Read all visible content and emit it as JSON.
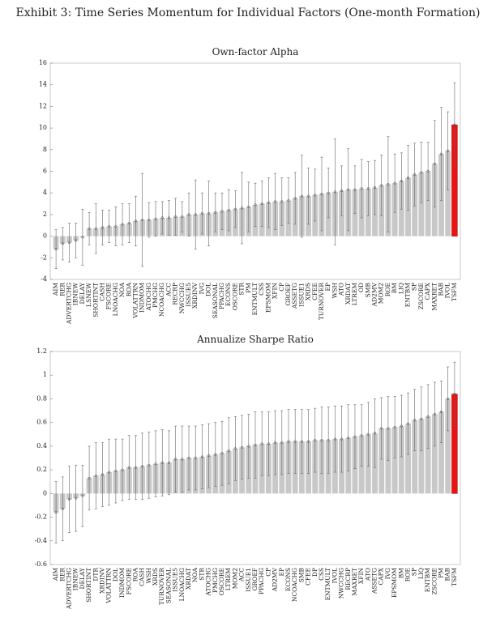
{
  "title": "Exhibit 3: Time Series Momentum for Individual Factors (One-month Formation)",
  "chart_data": [
    {
      "type": "bar",
      "title": "Own-factor Alpha",
      "categories": [
        "AIM",
        "RER",
        "ADVERTCHG",
        "IBNEW",
        "DELAY",
        "LSNEW",
        "SHORTINT",
        "CASH",
        "FSCORE",
        "LNOACHG",
        "NOA",
        "ROA",
        "VOLATTRN",
        "INDMOM",
        "ATOCHG",
        "PMCHG",
        "NCOACHG",
        "ACC",
        "RECRP",
        "NWCCHG",
        "ISSUE5",
        "XRDINV",
        "IVG",
        "DOL",
        "SEASONAL",
        "PPACHG",
        "ECONS",
        "OSCORE",
        "STR",
        "PM",
        "ENTMULT",
        "CSS",
        "EPSMOM",
        "XFIN",
        "CP",
        "GROEF",
        "ASSETG",
        "ISSUE1",
        "XRDS",
        "CFEE",
        "TURNOVER",
        "EP",
        "WSH",
        "ATO",
        "XRDAT",
        "LTREM",
        "OD",
        "SMB",
        "AD2MV",
        "MOM2",
        "ROE",
        "BM",
        "LIQ",
        "ENTBM",
        "SP",
        "ZSCORE",
        "CAPX",
        "MAXRET",
        "BAB",
        "IVOL",
        "TSFM"
      ],
      "values": [
        -1.2,
        -0.7,
        -0.6,
        -0.4,
        -0.1,
        0.7,
        0.7,
        0.8,
        0.9,
        0.9,
        1.1,
        1.2,
        1.4,
        1.5,
        1.5,
        1.6,
        1.7,
        1.7,
        1.8,
        1.8,
        2.0,
        2.0,
        2.1,
        2.1,
        2.2,
        2.3,
        2.4,
        2.5,
        2.6,
        2.7,
        2.9,
        3.0,
        3.1,
        3.2,
        3.2,
        3.3,
        3.5,
        3.7,
        3.7,
        3.8,
        3.9,
        4.0,
        4.1,
        4.2,
        4.3,
        4.3,
        4.4,
        4.4,
        4.5,
        4.7,
        4.8,
        4.9,
        5.1,
        5.4,
        5.7,
        5.9,
        6.0,
        6.7,
        7.6,
        7.9,
        10.3
      ],
      "errors": [
        1.8,
        1.5,
        1.8,
        1.6,
        2.6,
        1.5,
        2.3,
        1.6,
        1.5,
        1.8,
        1.9,
        1.8,
        2.3,
        4.3,
        1.6,
        1.6,
        1.5,
        1.6,
        1.7,
        1.4,
        2.0,
        3.2,
        1.9,
        3.0,
        1.8,
        1.7,
        1.9,
        1.7,
        3.3,
        2.3,
        2.0,
        2.1,
        2.3,
        2.6,
        2.2,
        2.1,
        2.4,
        3.8,
        2.6,
        2.4,
        3.4,
        2.3,
        4.9,
        2.3,
        3.8,
        2.2,
        2.7,
        2.5,
        2.5,
        2.8,
        4.4,
        2.7,
        2.6,
        3.0,
        2.9,
        2.8,
        2.7,
        4.0,
        4.3,
        3.6,
        3.9
      ],
      "color": "#c8c8c8",
      "highlight": {
        "index": 60,
        "color": "#ee1111"
      },
      "ylim": [
        -4,
        16
      ],
      "yticks": [
        -4,
        -2,
        0,
        2,
        4,
        6,
        8,
        10,
        12,
        14,
        16
      ]
    },
    {
      "type": "bar",
      "title": "Annualize Sharpe Ratio",
      "categories": [
        "AIM",
        "RER",
        "ADVERTCHG",
        "IBNEW",
        "DELAY",
        "SHORTINT",
        "DTR",
        "XRDINV",
        "VOLATTRN",
        "DOL",
        "INDMOM",
        "FSCORE",
        "ROA",
        "CASH",
        "WSH",
        "XRDS",
        "TURNOVER",
        "SEASONAL",
        "ISSUE5",
        "LNOACHG",
        "XRDAT",
        "NOA",
        "STR",
        "ATOCHG",
        "PMCHG",
        "OSCORE",
        "LTREM",
        "MOM2",
        "ACC",
        "ISSUE1",
        "GROEF",
        "PPACHG",
        "CP",
        "AD2MV",
        "EP",
        "ECONS",
        "NCOACHG",
        "SMB",
        "CFEE",
        "DP",
        "CSS",
        "ENTMULT",
        "IVOL",
        "NWCCHG",
        "RECRP",
        "MAXRET",
        "XFIN",
        "ATO",
        "ASSETG",
        "CAPX",
        "IVG",
        "EPSMOM",
        "BM",
        "ROE",
        "SP",
        "LIQ",
        "ENTBM",
        "ZSCORE",
        "PM",
        "BAB",
        "TSFM"
      ],
      "values": [
        -0.16,
        -0.13,
        -0.05,
        -0.04,
        -0.02,
        0.13,
        0.15,
        0.16,
        0.18,
        0.19,
        0.2,
        0.22,
        0.22,
        0.23,
        0.24,
        0.25,
        0.26,
        0.26,
        0.29,
        0.29,
        0.3,
        0.3,
        0.31,
        0.32,
        0.33,
        0.34,
        0.36,
        0.38,
        0.39,
        0.4,
        0.41,
        0.42,
        0.42,
        0.43,
        0.43,
        0.44,
        0.44,
        0.44,
        0.44,
        0.45,
        0.45,
        0.45,
        0.46,
        0.46,
        0.47,
        0.48,
        0.49,
        0.5,
        0.51,
        0.55,
        0.55,
        0.56,
        0.57,
        0.59,
        0.62,
        0.63,
        0.65,
        0.67,
        0.69,
        0.8,
        0.84
      ],
      "errors": [
        0.26,
        0.27,
        0.28,
        0.28,
        0.26,
        0.27,
        0.28,
        0.27,
        0.28,
        0.27,
        0.26,
        0.27,
        0.27,
        0.28,
        0.28,
        0.28,
        0.28,
        0.27,
        0.28,
        0.28,
        0.27,
        0.27,
        0.27,
        0.27,
        0.27,
        0.27,
        0.28,
        0.27,
        0.27,
        0.27,
        0.28,
        0.27,
        0.27,
        0.27,
        0.27,
        0.27,
        0.27,
        0.27,
        0.27,
        0.27,
        0.28,
        0.28,
        0.28,
        0.28,
        0.28,
        0.27,
        0.26,
        0.27,
        0.29,
        0.26,
        0.27,
        0.26,
        0.26,
        0.26,
        0.26,
        0.27,
        0.27,
        0.27,
        0.26,
        0.27,
        0.27
      ],
      "color": "#c8c8c8",
      "highlight": {
        "index": 60,
        "color": "#ee1111"
      },
      "ylim": [
        -0.6,
        1.2
      ],
      "yticks": [
        -0.6,
        -0.4,
        -0.2,
        0,
        0.2,
        0.4,
        0.6,
        0.8,
        1,
        1.2
      ]
    }
  ]
}
